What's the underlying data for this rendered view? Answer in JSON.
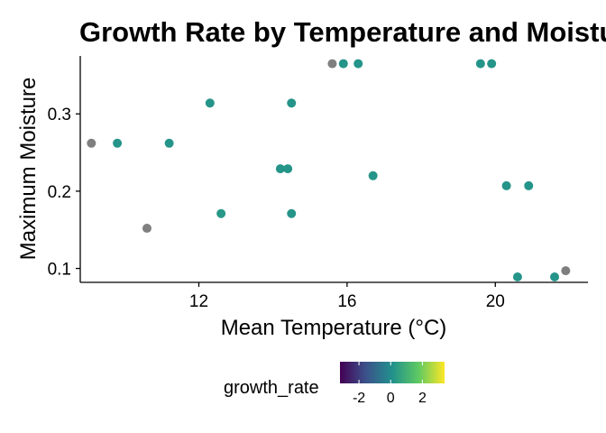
{
  "chart_data": {
    "type": "scatter",
    "title": "Growth Rate by Temperature and Moisture",
    "xlabel": "Mean Temperature (°C)",
    "ylabel": "Maximum Moisture",
    "xlim": [
      8.8,
      22.5
    ],
    "ylim": [
      0.082,
      0.375
    ],
    "x_ticks": [
      12,
      16,
      20
    ],
    "y_ticks": [
      0.1,
      0.2,
      0.3
    ],
    "x_tick_labels": [
      "12",
      "16",
      "20"
    ],
    "y_tick_labels": [
      "0.1",
      "0.2",
      "0.3"
    ],
    "grid": false,
    "legend": {
      "title": "growth_rate",
      "placement": "bottom",
      "colorscale": "viridis",
      "range": [
        -3.2,
        3.4
      ],
      "ticks": [
        -2,
        0,
        2
      ],
      "tick_labels": [
        "-2",
        "0",
        "2"
      ],
      "colors": [
        "#440154",
        "#3b528b",
        "#21918c",
        "#5ec962",
        "#fde725"
      ]
    },
    "na_color": "#7f7f7f",
    "points": [
      {
        "x": 9.1,
        "y": 0.262,
        "c": null
      },
      {
        "x": 9.8,
        "y": 0.262,
        "c": 0.2
      },
      {
        "x": 11.2,
        "y": 0.262,
        "c": 0.2
      },
      {
        "x": 10.6,
        "y": 0.152,
        "c": null
      },
      {
        "x": 12.3,
        "y": 0.314,
        "c": 0.2
      },
      {
        "x": 12.6,
        "y": 0.171,
        "c": 0.3
      },
      {
        "x": 14.2,
        "y": 0.229,
        "c": 0.2
      },
      {
        "x": 14.4,
        "y": 0.229,
        "c": 0.2
      },
      {
        "x": 14.5,
        "y": 0.314,
        "c": 0.2
      },
      {
        "x": 14.5,
        "y": 0.171,
        "c": 0.2
      },
      {
        "x": 15.6,
        "y": 0.365,
        "c": null
      },
      {
        "x": 15.9,
        "y": 0.365,
        "c": 0.2
      },
      {
        "x": 16.3,
        "y": 0.365,
        "c": 0.2
      },
      {
        "x": 16.7,
        "y": 0.22,
        "c": 0.2
      },
      {
        "x": 19.6,
        "y": 0.365,
        "c": 0.2
      },
      {
        "x": 19.9,
        "y": 0.365,
        "c": 0.2
      },
      {
        "x": 20.3,
        "y": 0.207,
        "c": 0.2
      },
      {
        "x": 20.9,
        "y": 0.207,
        "c": 0.2
      },
      {
        "x": 20.6,
        "y": 0.089,
        "c": 0.2
      },
      {
        "x": 21.6,
        "y": 0.089,
        "c": 0.2
      },
      {
        "x": 21.9,
        "y": 0.097,
        "c": null
      }
    ]
  }
}
